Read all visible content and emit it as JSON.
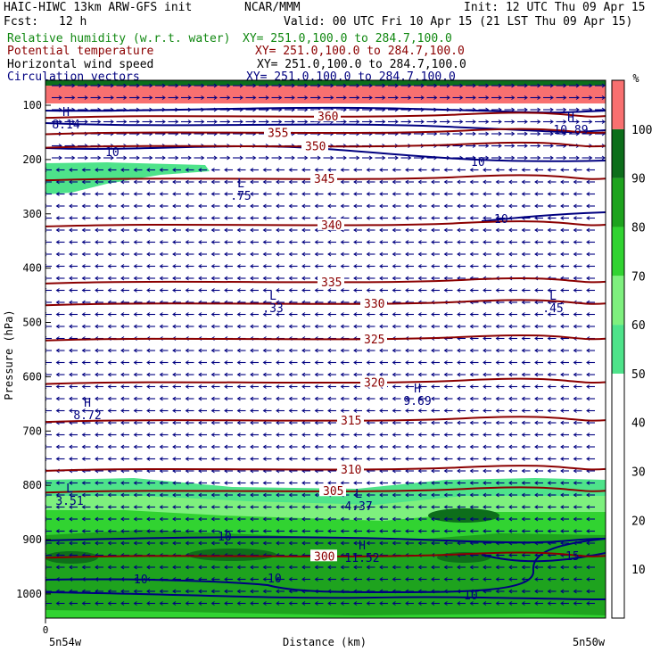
{
  "header": {
    "model": "HAIC-HIWC 13km ARW-GFS init",
    "org": "NCAR/MMM",
    "init": "Init: 12 UTC Thu 09 Apr 15",
    "fcst_label": "Fcst:",
    "fcst_value": "12 h",
    "valid": "Valid: 00 UTC Fri 10 Apr 15 (21 LST Thu 09 Apr 15)"
  },
  "fields": [
    {
      "name": "Relative humidity (w.r.t. water)",
      "xy": "XY= 251.0,100.0 to 284.7,100.0",
      "color": "#118811"
    },
    {
      "name": "Potential temperature",
      "xy": "XY= 251.0,100.0 to 284.7,100.0",
      "color": "#8b0000"
    },
    {
      "name": "Horizontal wind speed",
      "xy": "XY= 251.0,100.0 to 284.7,100.0",
      "color": "#000000"
    },
    {
      "name": "Circulation vectors",
      "xy": "XY= 251.0,100.0 to 284.7,100.0",
      "color": "#000080"
    }
  ],
  "chart_data": {
    "type": "heatmap",
    "title": "HAIC-HIWC 13km ARW-GFS init",
    "xlabel": "Distance (km)",
    "ylabel": "Pressure (hPa)",
    "x_ticks": [
      "0"
    ],
    "x_endpoints": [
      "5n54w",
      "5n50w"
    ],
    "y_ticks": [
      100,
      200,
      300,
      400,
      500,
      600,
      700,
      800,
      900,
      1000
    ],
    "colorbar": {
      "unit": "%",
      "ticks": [
        10,
        20,
        30,
        40,
        50,
        60,
        70,
        80,
        90,
        100
      ],
      "bins": [
        {
          "from": 50,
          "to": 60,
          "color": "#4ee38a"
        },
        {
          "from": 60,
          "to": 70,
          "color": "#7ef07e"
        },
        {
          "from": 70,
          "to": 80,
          "color": "#31d331"
        },
        {
          "from": 80,
          "to": 90,
          "color": "#1ea31e"
        },
        {
          "from": 90,
          "to": 100,
          "color": "#0d6e1b"
        },
        {
          "from": 100,
          "to": 110,
          "color": "#f87070"
        }
      ]
    },
    "theta_contours": [
      {
        "label": "300",
        "pressure": 930
      },
      {
        "label": "305",
        "pressure": 810
      },
      {
        "label": "310",
        "pressure": 770
      },
      {
        "label": "315",
        "pressure": 680
      },
      {
        "label": "320",
        "pressure": 610
      },
      {
        "label": "325",
        "pressure": 530
      },
      {
        "label": "330",
        "pressure": 465
      },
      {
        "label": "335",
        "pressure": 425
      },
      {
        "label": "340",
        "pressure": 320
      },
      {
        "label": "345",
        "pressure": 235
      },
      {
        "label": "350",
        "pressure": 175
      },
      {
        "label": "355",
        "pressure": 150
      },
      {
        "label": "360",
        "pressure": 120
      }
    ],
    "wind_contour_labels": [
      "10",
      "10",
      "10",
      "10",
      "10",
      "15",
      "10",
      "10"
    ],
    "extrema": [
      {
        "kind": "H",
        "value": "8.14"
      },
      {
        "kind": "H",
        "value": "10.89"
      },
      {
        "kind": "L",
        "value": ".75"
      },
      {
        "kind": "L",
        "value": ".33"
      },
      {
        "kind": "L",
        "value": ".45"
      },
      {
        "kind": "H",
        "value": "8.72"
      },
      {
        "kind": "H",
        "value": "9.69"
      },
      {
        "kind": "L",
        "value": "3.51"
      },
      {
        "kind": "L",
        "value": "4.37"
      },
      {
        "kind": "H",
        "value": "11.52"
      }
    ]
  }
}
